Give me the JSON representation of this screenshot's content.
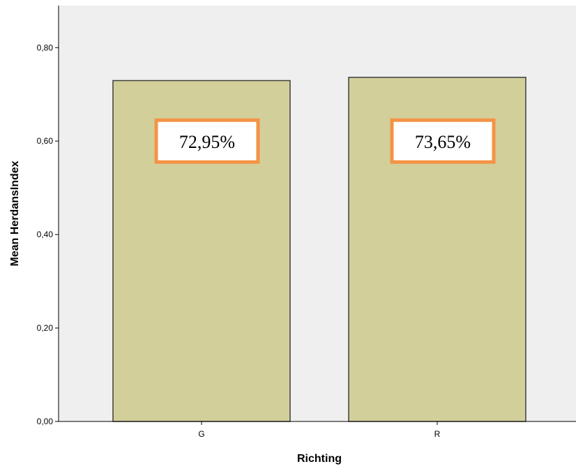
{
  "chart_data": {
    "type": "bar",
    "categories": [
      "G",
      "R"
    ],
    "values": [
      0.7295,
      0.7365
    ],
    "value_labels": [
      "72,95%",
      "73,65%"
    ],
    "title": "",
    "xlabel": "Richting",
    "ylabel": "Mean HerdansIndex",
    "ylim": [
      0,
      0.89
    ],
    "yticks": [
      0.0,
      0.2,
      0.4,
      0.6,
      0.8
    ],
    "ytick_labels": [
      "0,00",
      "0,20",
      "0,40",
      "0,60",
      "0,80"
    ],
    "grid": false,
    "legend": "none",
    "label_box_value": 0.6
  },
  "colors": {
    "plot_background": "#efefef",
    "bar_fill": "#d3cf9b",
    "bar_stroke": "#3f3f3f",
    "label_box_border": "#f39446",
    "label_box_fill": "#ffffff",
    "axis": "#000000"
  }
}
